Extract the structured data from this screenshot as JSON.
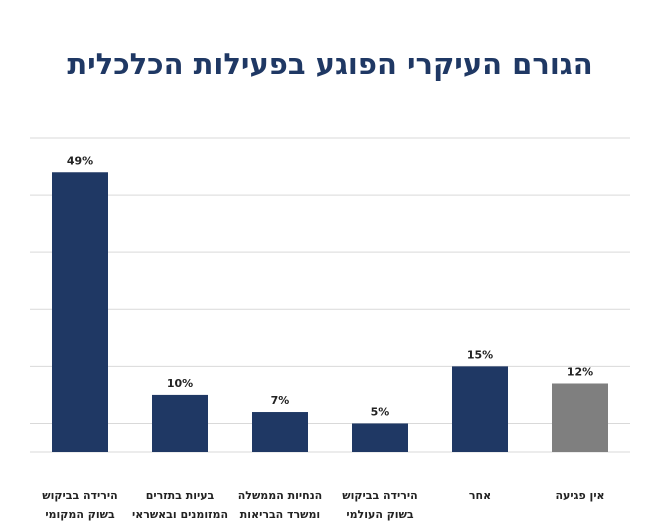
{
  "chart_data": {
    "type": "bar",
    "title": "הגורם העיקרי הפוגע בפעילות הכלכלית",
    "categories": [
      [
        "הירידה בביקוש",
        "בשוק המקומי"
      ],
      [
        "בעיות בתזרים",
        "המזומנים ובאשראי"
      ],
      [
        "הנחיות הממשלה",
        "ומשרד הבריאות"
      ],
      [
        "הירידה בביקוש",
        "בשוק העולמי"
      ],
      [
        "אחר"
      ],
      [
        "אין פגיעה"
      ]
    ],
    "values": [
      49,
      10,
      7,
      5,
      15,
      12
    ],
    "value_labels": [
      "49%",
      "10%",
      "7%",
      "5%",
      "15%",
      "12%"
    ],
    "colors": [
      "#1f3864",
      "#1f3864",
      "#1f3864",
      "#1f3864",
      "#1f3864",
      "#7f7f7f"
    ],
    "ylim": [
      0,
      55
    ],
    "yticks": [
      5,
      15,
      25,
      35,
      45,
      55
    ],
    "grid": true
  }
}
